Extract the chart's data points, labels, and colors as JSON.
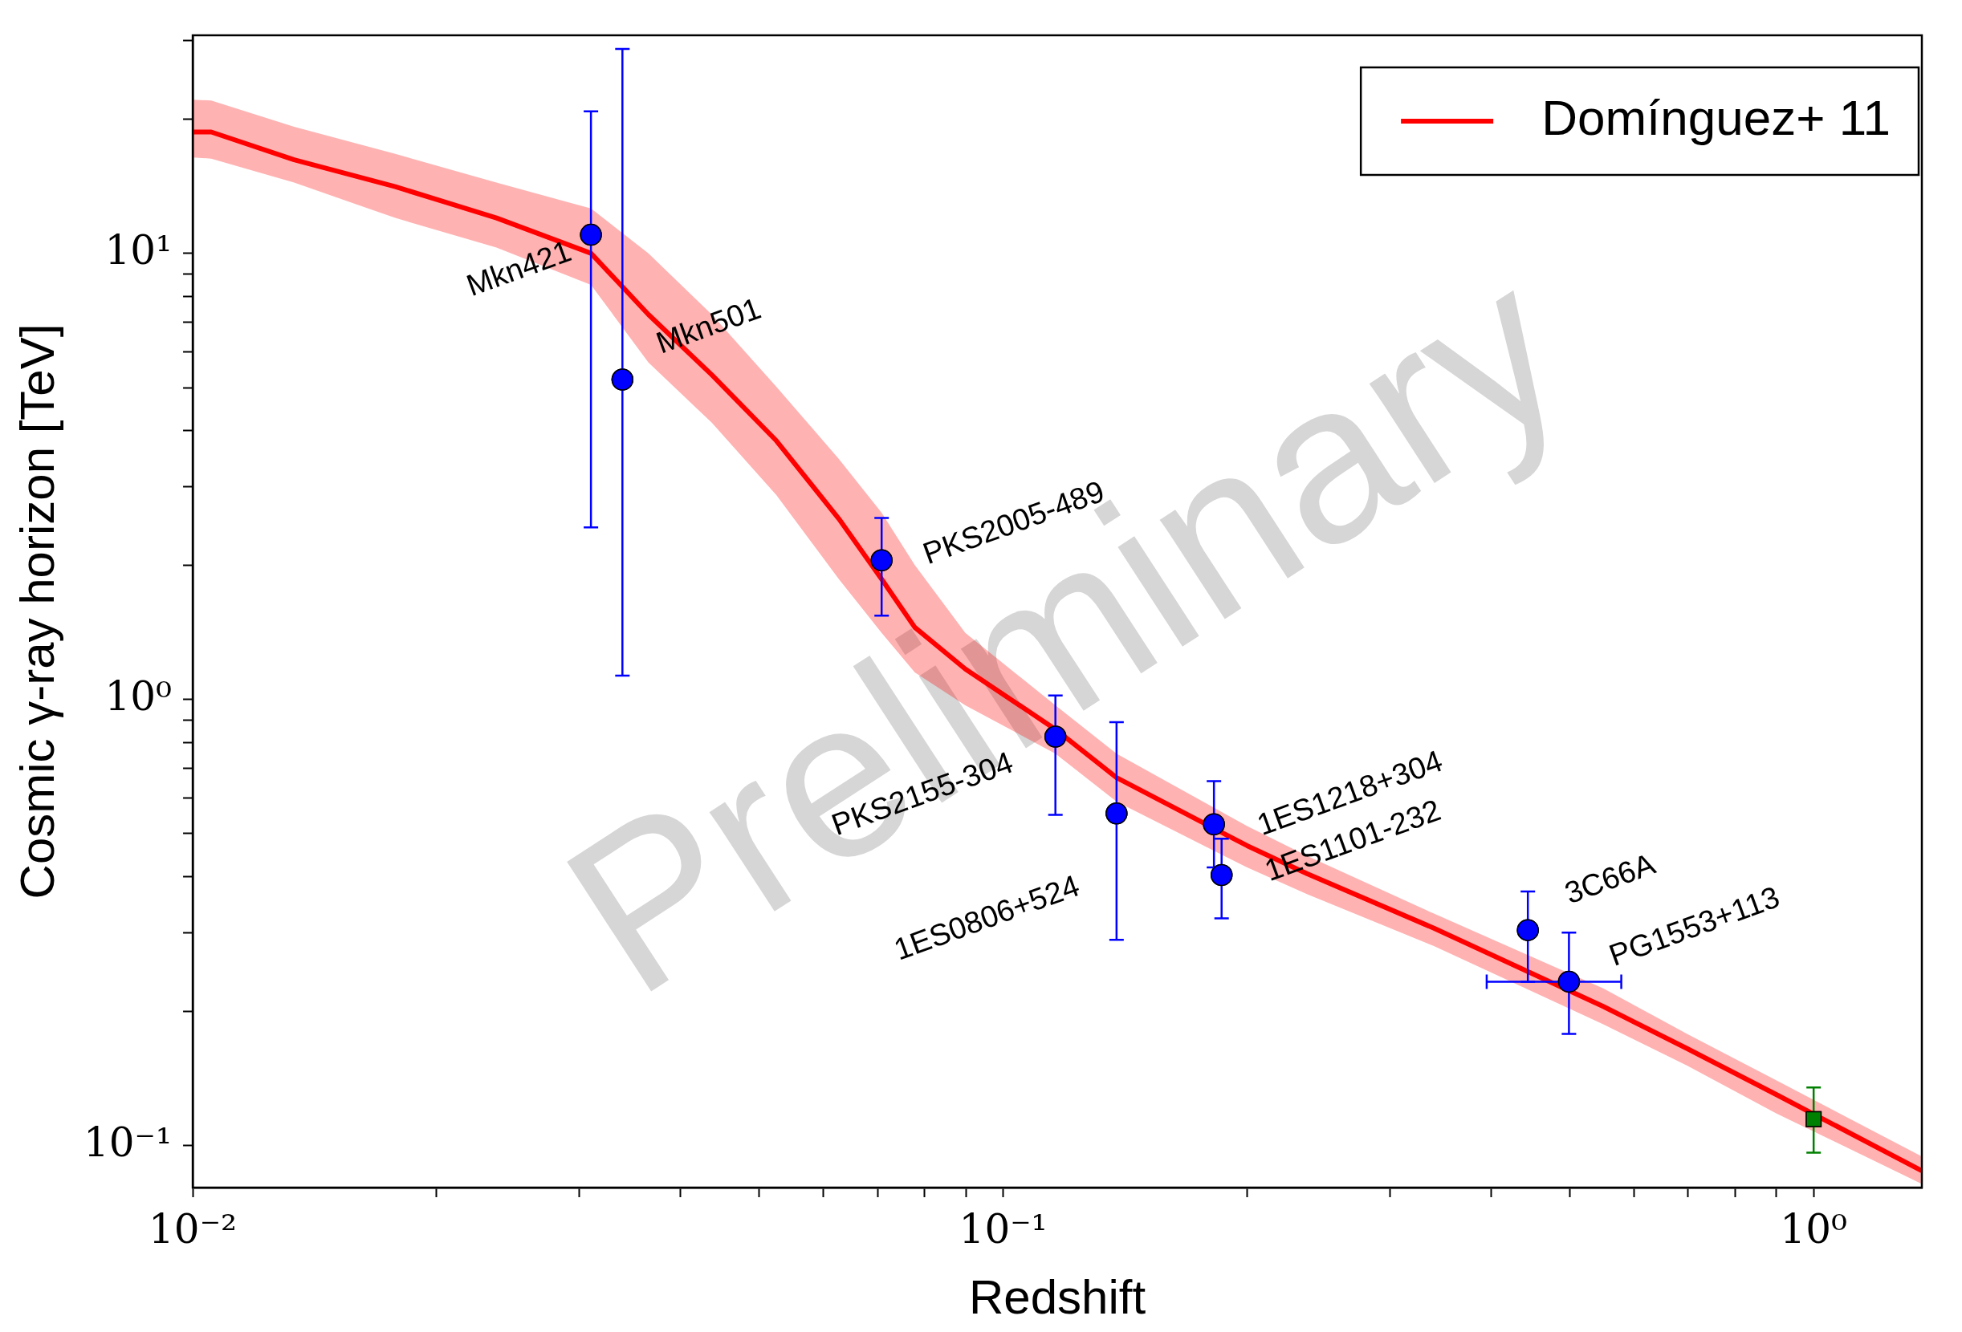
{
  "chart_data": {
    "type": "scatter",
    "xlabel": "Redshift",
    "ylabel": "Cosmic γ-ray horizon [TeV]",
    "log": "xy",
    "xlim": [
      0.01,
      1.36
    ],
    "ylim": [
      0.0805,
      30.8
    ],
    "xticks": [
      {
        "value": 0.01,
        "label": "10⁻²"
      },
      {
        "value": 0.02,
        "label": null
      },
      {
        "value": 0.03,
        "label": null
      },
      {
        "value": 0.04,
        "label": null
      },
      {
        "value": 0.05,
        "label": null
      },
      {
        "value": 0.06,
        "label": null
      },
      {
        "value": 0.07,
        "label": null
      },
      {
        "value": 0.08,
        "label": null
      },
      {
        "value": 0.09,
        "label": null
      },
      {
        "value": 0.1,
        "label": "10⁻¹"
      },
      {
        "value": 0.2,
        "label": null
      },
      {
        "value": 0.3,
        "label": null
      },
      {
        "value": 0.4,
        "label": null
      },
      {
        "value": 0.5,
        "label": null
      },
      {
        "value": 0.6,
        "label": null
      },
      {
        "value": 0.7,
        "label": null
      },
      {
        "value": 0.8,
        "label": null
      },
      {
        "value": 0.9,
        "label": null
      },
      {
        "value": 1,
        "label": "10⁰"
      }
    ],
    "yticks": [
      {
        "value": 0.1,
        "label": "10⁻¹"
      },
      {
        "value": 0.2,
        "label": null
      },
      {
        "value": 0.3,
        "label": null
      },
      {
        "value": 0.4,
        "label": null
      },
      {
        "value": 0.5,
        "label": null
      },
      {
        "value": 0.6,
        "label": null
      },
      {
        "value": 0.7,
        "label": null
      },
      {
        "value": 0.8,
        "label": null
      },
      {
        "value": 0.9,
        "label": null
      },
      {
        "value": 1,
        "label": "10⁰"
      },
      {
        "value": 2,
        "label": null
      },
      {
        "value": 3,
        "label": null
      },
      {
        "value": 4,
        "label": null
      },
      {
        "value": 5,
        "label": null
      },
      {
        "value": 6,
        "label": null
      },
      {
        "value": 7,
        "label": null
      },
      {
        "value": 8,
        "label": null
      },
      {
        "value": 9,
        "label": null
      },
      {
        "value": 10,
        "label": "10¹"
      },
      {
        "value": 20,
        "label": null
      },
      {
        "value": 30,
        "label": null
      }
    ],
    "grid": false,
    "legend": "top right",
    "series": [
      {
        "name": "Domínguez+ 11",
        "type": "line",
        "color": "#ff0000",
        "marker": "none",
        "line_style": "solid",
        "x": [
          0.01,
          0.01054,
          0.01334,
          0.01778,
          0.0237,
          0.031,
          0.0365,
          0.0437,
          0.0525,
          0.0627,
          0.0708,
          0.0778,
          0.0898,
          0.116,
          0.138,
          0.2,
          0.237,
          0.34,
          0.55,
          0.698,
          0.9,
          1.36
        ],
        "values": [
          18.7,
          18.7,
          16.2,
          14.1,
          12.0,
          10.0,
          7.29,
          5.34,
          3.8,
          2.54,
          1.86,
          1.45,
          1.17,
          0.857,
          0.668,
          0.47,
          0.407,
          0.307,
          0.205,
          0.165,
          0.13,
          0.0878
        ],
        "upper": [
          22.1,
          22.0,
          19.2,
          16.7,
          14.4,
          12.6,
          10.0,
          7.29,
          5.02,
          3.46,
          2.62,
          2.0,
          1.41,
          0.97,
          0.756,
          0.52,
          0.446,
          0.331,
          0.225,
          0.178,
          0.14,
          0.0945
        ],
        "lower": [
          16.4,
          16.3,
          14.4,
          12.0,
          10.3,
          8.5,
          5.69,
          4.17,
          2.87,
          1.86,
          1.41,
          1.15,
          0.97,
          0.756,
          0.59,
          0.42,
          0.366,
          0.28,
          0.187,
          0.151,
          0.118,
          0.082
        ]
      },
      {
        "type": "scatter",
        "color": "#0000ff",
        "marker": "circle",
        "x": [
          0.031,
          0.0339,
          0.0708,
          0.116,
          0.138,
          0.182,
          0.186,
          0.444,
          0.499
        ],
        "values": [
          11.0,
          5.21,
          2.05,
          0.825,
          0.555,
          0.525,
          0.404,
          0.304,
          0.233
        ],
        "errors": [
          [
            2.43,
            20.8
          ],
          [
            1.13,
            28.7
          ],
          [
            1.54,
            2.55
          ],
          [
            0.551,
            1.02
          ],
          [
            0.289,
            0.889
          ],
          [
            0.42,
            0.656
          ],
          [
            0.323,
            0.487
          ],
          [
            0.233,
            0.371
          ],
          [
            0.178,
            0.3
          ]
        ],
        "xerrors": [
          null,
          null,
          null,
          null,
          null,
          null,
          null,
          null,
          [
            0.395,
            0.579
          ]
        ]
      },
      {
        "type": "scatter",
        "color": "#008000",
        "marker": "square",
        "x": [
          1.0
        ],
        "values": [
          0.1146
        ],
        "errors": [
          [
            0.0964,
            0.135
          ]
        ]
      }
    ],
    "annotations": [
      "Preliminary",
      {
        "text": "Mkn421",
        "x": 0.031,
        "y": 11.0
      },
      {
        "text": "Mkn501",
        "x": 0.0339,
        "y": 5.21
      },
      {
        "text": "PKS2005-489",
        "x": 0.0708,
        "y": 2.05
      },
      {
        "text": "PKS2155-304",
        "x": 0.116,
        "y": 0.825
      },
      {
        "text": "1ES0806+524",
        "x": 0.138,
        "y": 0.555
      },
      {
        "text": "1ES1218+304",
        "x": 0.182,
        "y": 0.525
      },
      {
        "text": "1ES1101-232",
        "x": 0.186,
        "y": 0.404
      },
      {
        "text": "3C66A",
        "x": 0.444,
        "y": 0.304
      },
      {
        "text": "PG1553+113",
        "x": 0.499,
        "y": 0.233
      }
    ]
  }
}
